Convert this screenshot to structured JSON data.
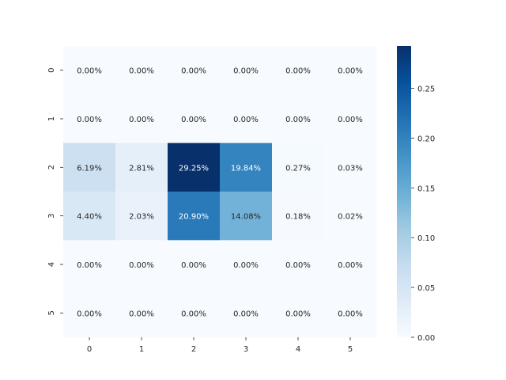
{
  "chart_data": {
    "type": "heatmap",
    "title": "",
    "xlabel": "",
    "ylabel": "",
    "x_categories": [
      "0",
      "1",
      "2",
      "3",
      "4",
      "5"
    ],
    "y_categories": [
      "0",
      "1",
      "2",
      "3",
      "4",
      "5"
    ],
    "values": [
      [
        0.0,
        0.0,
        0.0,
        0.0,
        0.0,
        0.0
      ],
      [
        0.0,
        0.0,
        0.0,
        0.0,
        0.0,
        0.0
      ],
      [
        0.0619,
        0.0281,
        0.2925,
        0.1984,
        0.0027,
        0.0003
      ],
      [
        0.044,
        0.0203,
        0.209,
        0.1408,
        0.0018,
        0.0002
      ],
      [
        0.0,
        0.0,
        0.0,
        0.0,
        0.0,
        0.0
      ],
      [
        0.0,
        0.0,
        0.0,
        0.0,
        0.0,
        0.0
      ]
    ],
    "cell_labels": [
      [
        "0.00%",
        "0.00%",
        "0.00%",
        "0.00%",
        "0.00%",
        "0.00%"
      ],
      [
        "0.00%",
        "0.00%",
        "0.00%",
        "0.00%",
        "0.00%",
        "0.00%"
      ],
      [
        "6.19%",
        "2.81%",
        "29.25%",
        "19.84%",
        "0.27%",
        "0.03%"
      ],
      [
        "4.40%",
        "2.03%",
        "20.90%",
        "14.08%",
        "0.18%",
        "0.02%"
      ],
      [
        "0.00%",
        "0.00%",
        "0.00%",
        "0.00%",
        "0.00%",
        "0.00%"
      ],
      [
        "0.00%",
        "0.00%",
        "0.00%",
        "0.00%",
        "0.00%",
        "0.00%"
      ]
    ],
    "colormap": "Blues",
    "colorbar": {
      "range": [
        0,
        0.2925
      ],
      "ticks": [
        0.0,
        0.05,
        0.1,
        0.15,
        0.2,
        0.25
      ],
      "tick_labels": [
        "0.00",
        "0.05",
        "0.10",
        "0.15",
        "0.20",
        "0.25"
      ]
    },
    "grid": false
  }
}
